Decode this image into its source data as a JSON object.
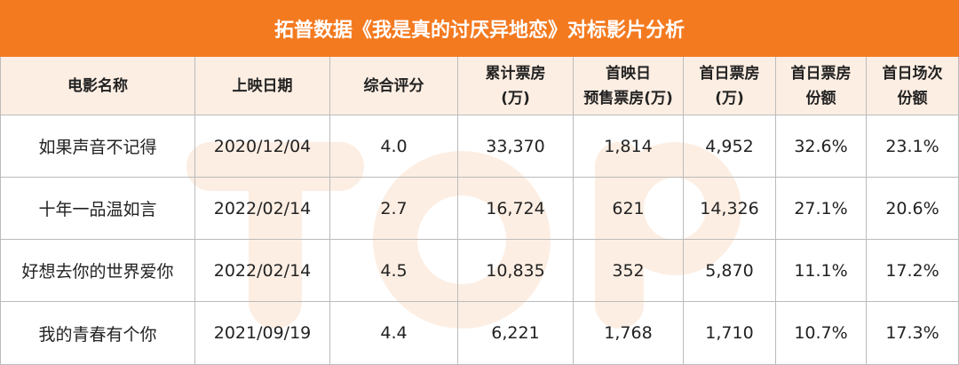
{
  "header": {
    "title": "拓普数据《我是真的讨厌异地恋》对标影片分析"
  },
  "table": {
    "columns": [
      "电影名称",
      "上映日期",
      "综合评分",
      "累计票房\n(万)",
      "首映日\n预售票房(万)",
      "首日票房\n(万)",
      "首日票房\n份额",
      "首日场次\n份额"
    ],
    "rows": [
      [
        "如果声音不记得",
        "2020/12/04",
        "4.0",
        "33,370",
        "1,814",
        "4,952",
        "32.6%",
        "23.1%"
      ],
      [
        "十年一品温如言",
        "2022/02/14",
        "2.7",
        "16,724",
        "621",
        "14,326",
        "27.1%",
        "20.6%"
      ],
      [
        "好想去你的世界爱你",
        "2022/02/14",
        "4.5",
        "10,835",
        "352",
        "5,870",
        "11.1%",
        "17.2%"
      ],
      [
        "我的青春有个你",
        "2021/09/19",
        "4.4",
        "6,221",
        "1,768",
        "1,710",
        "10.7%",
        "17.3%"
      ]
    ]
  }
}
